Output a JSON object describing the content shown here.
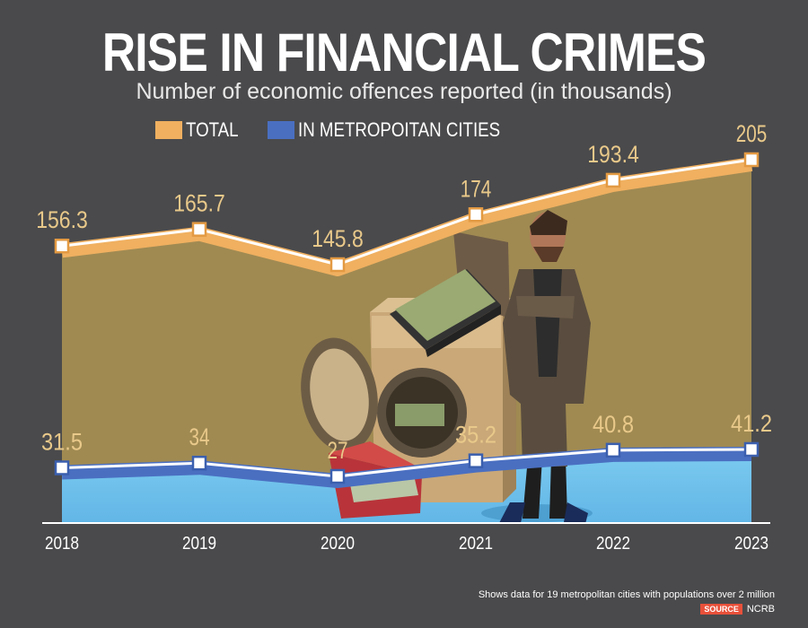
{
  "title": "RISE IN FINANCIAL CRIMES",
  "subtitle": "Number of economic offences reported (in thousands)",
  "source_label": "SOURCE",
  "source_name": "NCRB",
  "footnote": "Shows data for 19 metropolitan cities with populations over 2 million",
  "colors": {
    "background": "#4a4a4c",
    "total": "#f0b060",
    "total_area": "#a08a52",
    "metro": "#4a6fc1",
    "metro_area": "#6fc3ee",
    "label": "#e9c98a",
    "source_badge": "#e8503a"
  },
  "chart_data": {
    "type": "area",
    "title": "RISE IN FINANCIAL CRIMES",
    "subtitle": "Number of economic offences reported (in thousands)",
    "categories": [
      "2018",
      "2019",
      "2020",
      "2021",
      "2022",
      "2023"
    ],
    "series": [
      {
        "name": "TOTAL",
        "color": "#f0b060",
        "values": [
          156.3,
          165.7,
          145.8,
          174,
          193.4,
          205
        ],
        "labels": [
          "156.3",
          "165.7",
          "145.8",
          "174",
          "193.4",
          "205"
        ]
      },
      {
        "name": "IN METROPOITAN CITIES",
        "color": "#4a6fc1",
        "values": [
          31.5,
          34,
          27,
          35.2,
          40.8,
          41.2
        ],
        "labels": [
          "31.5",
          "34",
          "27",
          "35.2",
          "40.8",
          "41.2"
        ]
      }
    ],
    "xlabel": "",
    "ylabel": "",
    "grid": false,
    "legend": "top-left"
  }
}
